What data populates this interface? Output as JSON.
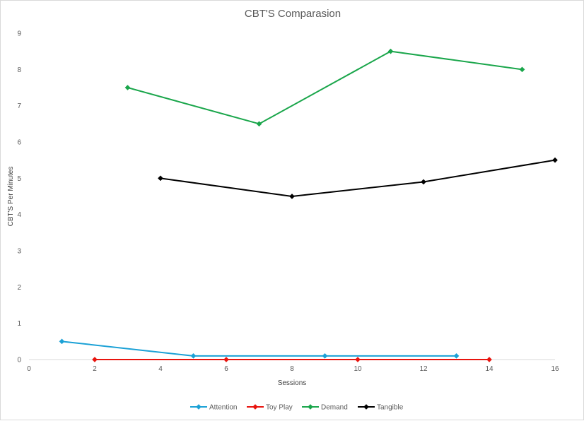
{
  "chart_data": {
    "type": "line",
    "title": "CBT'S Comparasion",
    "xlabel": "Sessions",
    "ylabel": "CBT'S  Per Minutes",
    "xlim": [
      0,
      16
    ],
    "ylim": [
      0,
      9
    ],
    "x_ticks": [
      0,
      2,
      4,
      6,
      8,
      10,
      12,
      14,
      16
    ],
    "y_ticks": [
      0,
      1,
      2,
      3,
      4,
      5,
      6,
      7,
      8,
      9
    ],
    "grid": false,
    "legend_position": "bottom",
    "series": [
      {
        "name": "Attention",
        "color": "#1ba1d6",
        "points": [
          [
            1,
            0.5
          ],
          [
            5,
            0.1
          ],
          [
            9,
            0.1
          ],
          [
            13,
            0.1
          ]
        ]
      },
      {
        "name": "Toy Play",
        "color": "#e8140e",
        "points": [
          [
            2,
            0
          ],
          [
            6,
            0
          ],
          [
            10,
            0
          ],
          [
            14,
            0
          ]
        ]
      },
      {
        "name": "Demand",
        "color": "#1aa64b",
        "points": [
          [
            3,
            7.5
          ],
          [
            7,
            6.5
          ],
          [
            11,
            8.5
          ],
          [
            15,
            8
          ]
        ]
      },
      {
        "name": "Tangible",
        "color": "#000000",
        "points": [
          [
            4,
            5
          ],
          [
            8,
            4.5
          ],
          [
            12,
            4.9
          ],
          [
            16,
            5.5
          ]
        ]
      }
    ]
  }
}
